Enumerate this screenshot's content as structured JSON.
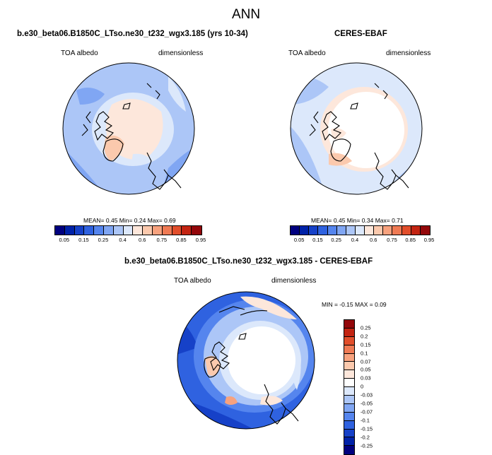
{
  "title": "ANN",
  "panels": [
    {
      "title": "b.e30_beta06.B1850C_LTso.ne30_t232_wgx3.185 (yrs 10-34)",
      "left_label": "TOA albedo",
      "right_label": "dimensionless",
      "stats": "MEAN=  0.45  Min=  0.24  Max=  0.69"
    },
    {
      "title": "CERES-EBAF",
      "left_label": "TOA albedo",
      "right_label": "dimensionless",
      "stats": "MEAN=  0.45  Min=  0.34  Max=  0.71"
    },
    {
      "title": "b.e30_beta06.B1850C_LTso.ne30_t232_wgx3.185 - CERES-EBAF",
      "left_label": "TOA albedo",
      "right_label": "dimensionless",
      "stats": "MIN = -0.15 MAX =  0.09"
    }
  ],
  "colorbar_top": {
    "labels": [
      "0.05",
      "0.15",
      "0.25",
      "0.4",
      "0.6",
      "0.75",
      "0.85",
      "0.95"
    ],
    "colors": [
      "#00007f",
      "#0022a8",
      "#1641c8",
      "#2f62e0",
      "#5585ee",
      "#80a6f3",
      "#acc6f7",
      "#dce8fb",
      "#fde7db",
      "#fbc9ad",
      "#f7a27e",
      "#ef7a54",
      "#e14e2b",
      "#c32412",
      "#93070a"
    ]
  },
  "colorbar_diff": {
    "labels": [
      "0.25",
      "0.2",
      "0.15",
      "0.1",
      "0.07",
      "0.05",
      "0.03",
      "0",
      "-0.03",
      "-0.05",
      "-0.07",
      "-0.1",
      "-0.15",
      "-0.2",
      "-0.25"
    ],
    "colors": [
      "#93070a",
      "#c32412",
      "#e14e2b",
      "#ef7a54",
      "#f7a27e",
      "#fbc9ad",
      "#fde7db",
      "#ffffff",
      "#dce8fb",
      "#acc6f7",
      "#80a6f3",
      "#5585ee",
      "#2f62e0",
      "#1641c8",
      "#0022a8",
      "#00007f"
    ]
  }
}
